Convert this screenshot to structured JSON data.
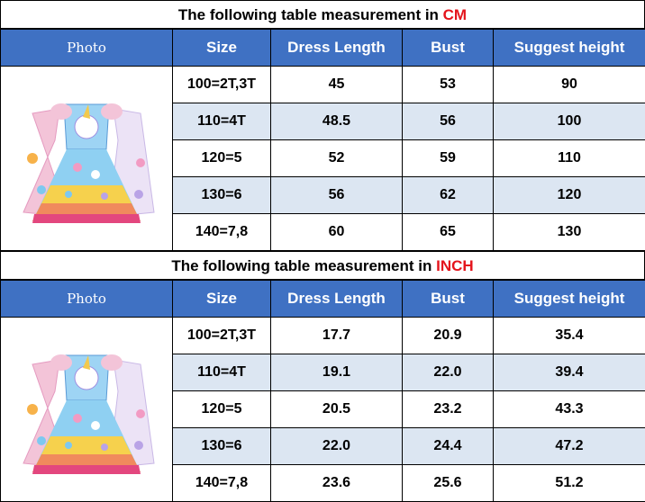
{
  "tables": [
    {
      "title_prefix": "The following table measurement in ",
      "unit": "CM",
      "headers": [
        "Photo",
        "Size",
        "Dress Length",
        "Bust",
        "Suggest height"
      ],
      "rows": [
        [
          "100=2T,3T",
          "45",
          "53",
          "90"
        ],
        [
          "110=4T",
          "48.5",
          "56",
          "100"
        ],
        [
          "120=5",
          "52",
          "59",
          "110"
        ],
        [
          "130=6",
          "56",
          "62",
          "120"
        ],
        [
          "140=7,8",
          "60",
          "65",
          "130"
        ]
      ]
    },
    {
      "title_prefix": "The following table measurement in ",
      "unit": "INCH",
      "headers": [
        "Photo",
        "Size",
        "Dress Length",
        "Bust",
        "Suggest height"
      ],
      "rows": [
        [
          "100=2T,3T",
          "17.7",
          "20.9",
          "35.4"
        ],
        [
          "110=4T",
          "19.1",
          "22.0",
          "39.4"
        ],
        [
          "120=5",
          "20.5",
          "23.2",
          "43.3"
        ],
        [
          "130=6",
          "22.0",
          "24.4",
          "47.2"
        ],
        [
          "140=7,8",
          "23.6",
          "25.6",
          "51.2"
        ]
      ]
    }
  ],
  "colors": {
    "header_bg": "#3f71c3",
    "header_text": "#ffffff",
    "unit_text": "#e4141c",
    "alt_row_bg": "#dce6f2"
  },
  "photo_icon": "unicorn-rainbow-dress-image"
}
